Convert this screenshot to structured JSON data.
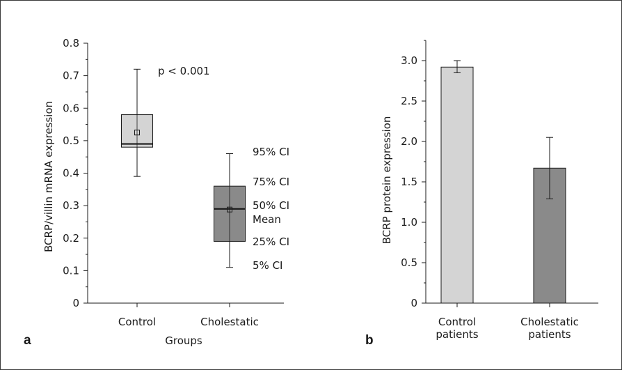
{
  "chart_data": [
    {
      "type": "box",
      "panel_label": "a",
      "xlabel": "Groups",
      "ylabel": "BCRP/villin mRNA expression",
      "ylim": [
        0,
        0.8
      ],
      "yticks": [
        "0",
        "0.1",
        "0.2",
        "0.3",
        "0.4",
        "0.5",
        "0.6",
        "0.7",
        "0.8"
      ],
      "annotation": "p < 0.001",
      "categories": [
        "Control",
        "Cholestatic"
      ],
      "series": [
        {
          "category": "Control",
          "p5": 0.39,
          "p25": 0.48,
          "median": 0.49,
          "mean": 0.525,
          "p75": 0.58,
          "p95": 0.72,
          "color": "#d4d4d4"
        },
        {
          "category": "Cholestatic",
          "p5": 0.11,
          "p25": 0.19,
          "median": 0.29,
          "mean": 0.288,
          "p75": 0.36,
          "p95": 0.46,
          "color": "#8a8a8a"
        }
      ],
      "legend_labels": [
        "95% CI",
        "75% CI",
        "50% CI",
        "Mean",
        "25% CI",
        "5% CI"
      ]
    },
    {
      "type": "bar",
      "panel_label": "b",
      "xlabel": "",
      "ylabel": "BCRP protein expression",
      "ylim": [
        0,
        3.25
      ],
      "yticks": [
        "0",
        "0.5",
        "1.0",
        "1.5",
        "2.0",
        "2.5",
        "3.0"
      ],
      "categories": [
        [
          "Control",
          "patients"
        ],
        [
          "Cholestatic",
          "patients"
        ]
      ],
      "values": [
        2.92,
        1.67
      ],
      "errors": [
        [
          2.85,
          3.0
        ],
        [
          1.29,
          2.05
        ]
      ],
      "colors": [
        "#d4d4d4",
        "#8a8a8a"
      ]
    }
  ]
}
